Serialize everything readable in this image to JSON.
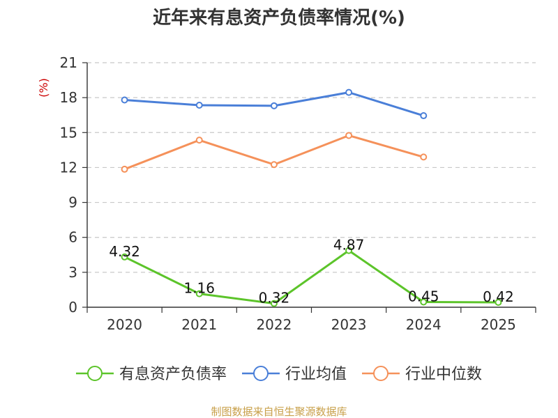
{
  "chart_data": {
    "type": "line",
    "title": "近年来有息资产负债率情况(%)",
    "unit_label": "(%)",
    "categories": [
      "2020",
      "2021",
      "2022",
      "2023",
      "2024",
      "2025"
    ],
    "ylim": [
      0,
      21
    ],
    "yticks": [
      0,
      3,
      6,
      9,
      12,
      15,
      18,
      21
    ],
    "grid": true,
    "legend_position": "bottom",
    "series": [
      {
        "name": "有息资产负债率",
        "color": "#5cc42a",
        "values": [
          4.32,
          1.16,
          0.32,
          4.87,
          0.45,
          0.42
        ],
        "labels": [
          "4.32",
          "1.16",
          "0.32",
          "4.87",
          "0.45",
          "0.42"
        ]
      },
      {
        "name": "行业均值",
        "color": "#4a7fd8",
        "values": [
          17.8,
          17.35,
          17.3,
          18.45,
          16.45,
          null
        ]
      },
      {
        "name": "行业中位数",
        "color": "#f5915a",
        "values": [
          11.85,
          14.35,
          12.25,
          14.75,
          12.9,
          null
        ]
      }
    ],
    "source": "制图数据来自恒生聚源数据库"
  }
}
